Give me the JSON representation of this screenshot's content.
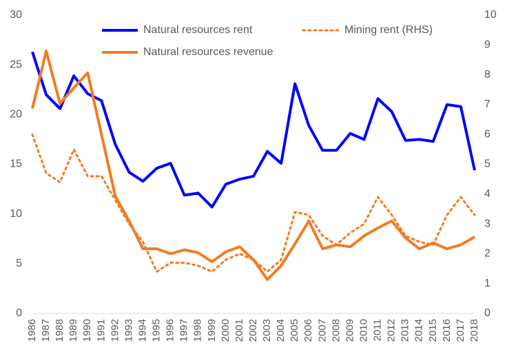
{
  "chart_data": {
    "type": "line",
    "categories": [
      "1986",
      "1987",
      "1988",
      "1989",
      "1990",
      "1991",
      "1992",
      "1993",
      "1994",
      "1995",
      "1996",
      "1997",
      "1998",
      "1999",
      "2000",
      "2001",
      "2002",
      "2003",
      "2004",
      "2005",
      "2006",
      "2007",
      "2008",
      "2009",
      "2010",
      "2011",
      "2012",
      "2013",
      "2014",
      "2015",
      "2016",
      "2017",
      "2018"
    ],
    "series": [
      {
        "name": "Natural resources rent",
        "color": "#0000ff",
        "axis": "y",
        "style": "solid",
        "values": [
          26.3,
          22.0,
          20.6,
          23.9,
          22.1,
          21.4,
          17.0,
          14.2,
          13.3,
          14.6,
          15.1,
          11.9,
          12.1,
          10.7,
          13.0,
          13.5,
          13.8,
          16.3,
          15.1,
          23.1,
          18.9,
          16.4,
          16.4,
          18.1,
          17.5,
          21.6,
          20.3,
          17.4,
          17.5,
          17.3,
          21.0,
          20.8,
          14.4
        ]
      },
      {
        "name": "Mining rent (RHS)",
        "color": "#f47b20",
        "axis": "y2",
        "style": "dotted",
        "values": [
          6.0,
          4.7,
          4.4,
          5.5,
          4.6,
          4.6,
          3.8,
          3.0,
          2.4,
          1.4,
          1.7,
          1.7,
          1.6,
          1.4,
          1.8,
          2.0,
          1.8,
          1.4,
          1.8,
          3.4,
          3.3,
          2.6,
          2.3,
          2.7,
          3.0,
          3.9,
          3.3,
          2.6,
          2.4,
          2.3,
          3.3,
          3.9,
          3.3
        ]
      },
      {
        "name": "Natural resources revenue",
        "color": "#f47b20",
        "axis": "y",
        "style": "solid",
        "values": [
          20.6,
          26.4,
          21.1,
          22.7,
          24.2,
          18.0,
          11.8,
          9.3,
          6.5,
          6.5,
          6.0,
          6.4,
          6.1,
          5.2,
          6.2,
          6.7,
          5.4,
          3.4,
          4.8,
          7.0,
          9.3,
          6.5,
          6.9,
          6.7,
          7.8,
          8.6,
          9.3,
          7.6,
          6.5,
          7.1,
          6.5,
          6.9,
          7.7
        ]
      }
    ],
    "ylim": [
      0,
      30
    ],
    "yticks": [
      0,
      5,
      10,
      15,
      20,
      25,
      30
    ],
    "y2lim": [
      0,
      10
    ],
    "y2ticks": [
      0,
      1,
      2,
      3,
      4,
      5,
      6,
      7,
      8,
      9,
      10
    ],
    "grid": false,
    "legend": "top"
  }
}
